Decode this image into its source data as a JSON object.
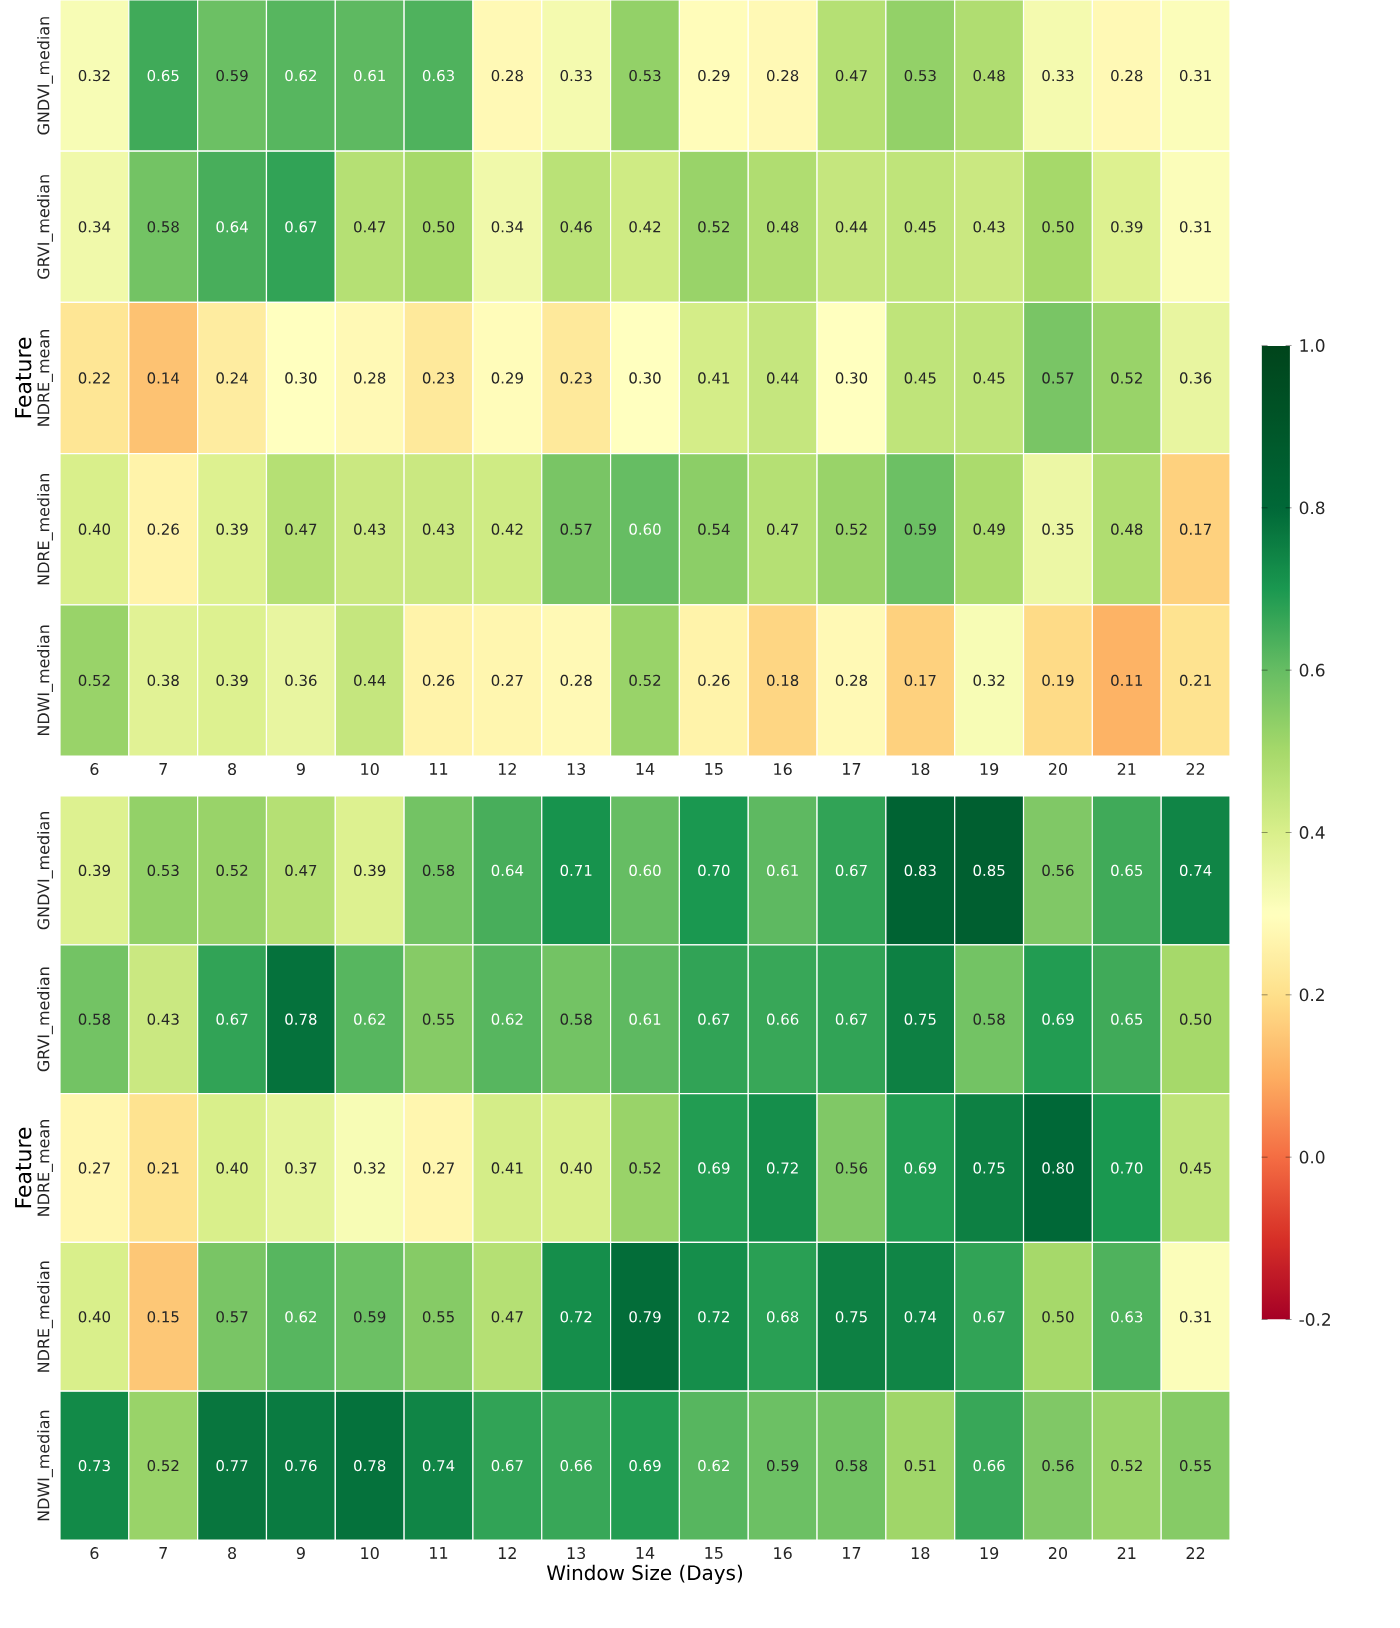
{
  "chart_data": [
    {
      "type": "heatmap",
      "ylabel": "Feature",
      "data_labels": true,
      "categories": [
        "6",
        "7",
        "8",
        "9",
        "10",
        "11",
        "12",
        "13",
        "14",
        "15",
        "16",
        "17",
        "18",
        "19",
        "20",
        "21",
        "22"
      ],
      "y_categories": [
        "GNDVI_median",
        "GRVI_median",
        "NDRE_mean",
        "NDRE_median",
        "NDWI_median"
      ],
      "cells": [
        [
          0.32,
          0.65,
          0.59,
          0.62,
          0.61,
          0.63,
          0.28,
          0.33,
          0.53,
          0.29,
          0.28,
          0.47,
          0.53,
          0.48,
          0.33,
          0.28,
          0.31
        ],
        [
          0.34,
          0.58,
          0.64,
          0.67,
          0.47,
          0.5,
          0.34,
          0.46,
          0.42,
          0.52,
          0.48,
          0.44,
          0.45,
          0.43,
          0.5,
          0.39,
          0.31
        ],
        [
          0.22,
          0.14,
          0.24,
          0.3,
          0.28,
          0.23,
          0.29,
          0.23,
          0.3,
          0.41,
          0.44,
          0.3,
          0.45,
          0.45,
          0.57,
          0.52,
          0.36
        ],
        [
          0.4,
          0.26,
          0.39,
          0.47,
          0.43,
          0.43,
          0.42,
          0.57,
          0.6,
          0.54,
          0.47,
          0.52,
          0.59,
          0.49,
          0.35,
          0.48,
          0.17
        ],
        [
          0.52,
          0.38,
          0.39,
          0.36,
          0.44,
          0.26,
          0.27,
          0.28,
          0.52,
          0.26,
          0.18,
          0.28,
          0.17,
          0.32,
          0.19,
          0.11,
          0.21
        ]
      ],
      "cell_labels": [
        [
          "0.32",
          "0.65",
          "0.59",
          "0.62",
          "0.61",
          "0.63",
          "0.28",
          "0.33",
          "0.53",
          "0.29",
          "0.28",
          "0.47",
          "0.53",
          "0.48",
          "0.33",
          "0.28",
          "0.31"
        ],
        [
          "0.34",
          "0.58",
          "0.64",
          "0.67",
          "0.47",
          "0.50",
          "0.34",
          "0.46",
          "0.42",
          "0.52",
          "0.48",
          "0.44",
          "0.45",
          "0.43",
          "0.50",
          "0.39",
          "0.31"
        ],
        [
          "0.22",
          "0.14",
          "0.24",
          "0.30",
          "0.28",
          "0.23",
          "0.29",
          "0.23",
          "0.30",
          "0.41",
          "0.44",
          "0.30",
          "0.45",
          "0.45",
          "0.57",
          "0.52",
          "0.36"
        ],
        [
          "0.40",
          "0.26",
          "0.39",
          "0.47",
          "0.43",
          "0.43",
          "0.42",
          "0.57",
          "0.60",
          "0.54",
          "0.47",
          "0.52",
          "0.59",
          "0.49",
          "0.35",
          "0.48",
          "0.17"
        ],
        [
          "0.52",
          "0.38",
          "0.39",
          "0.36",
          "0.44",
          "0.26",
          "0.27",
          "0.28",
          "0.52",
          "0.26",
          "0.18",
          "0.28",
          "0.17",
          "0.32",
          "0.19",
          "0.11",
          "0.21"
        ]
      ],
      "clim": [
        -0.2,
        1.0
      ],
      "cticks": [
        {
          "value": -0.2,
          "label": "-0.2"
        },
        {
          "value": 0.0,
          "label": "0.0"
        },
        {
          "value": 0.2,
          "label": "0.2"
        },
        {
          "value": 0.4,
          "label": "0.4"
        },
        {
          "value": 0.6,
          "label": "0.6"
        },
        {
          "value": 0.8,
          "label": "0.8"
        },
        {
          "value": 1.0,
          "label": "1.0"
        }
      ]
    },
    {
      "type": "heatmap",
      "ylabel": "Feature",
      "xlabel": "Window Size (Days)",
      "data_labels": true,
      "categories": [
        "6",
        "7",
        "8",
        "9",
        "10",
        "11",
        "12",
        "13",
        "14",
        "15",
        "16",
        "17",
        "18",
        "19",
        "20",
        "21",
        "22"
      ],
      "y_categories": [
        "GNDVI_median",
        "GRVI_median",
        "NDRE_mean",
        "NDRE_median",
        "NDWI_median"
      ],
      "cells": [
        [
          0.39,
          0.53,
          0.52,
          0.47,
          0.39,
          0.58,
          0.64,
          0.71,
          0.6,
          0.7,
          0.61,
          0.67,
          0.83,
          0.85,
          0.56,
          0.65,
          0.74
        ],
        [
          0.58,
          0.43,
          0.67,
          0.78,
          0.62,
          0.55,
          0.62,
          0.58,
          0.61,
          0.67,
          0.66,
          0.67,
          0.75,
          0.58,
          0.69,
          0.65,
          0.5
        ],
        [
          0.27,
          0.21,
          0.4,
          0.37,
          0.32,
          0.27,
          0.41,
          0.4,
          0.52,
          0.69,
          0.72,
          0.56,
          0.69,
          0.75,
          0.8,
          0.7,
          0.45
        ],
        [
          0.4,
          0.15,
          0.57,
          0.62,
          0.59,
          0.55,
          0.47,
          0.72,
          0.79,
          0.72,
          0.68,
          0.75,
          0.74,
          0.67,
          0.5,
          0.63,
          0.31
        ],
        [
          0.73,
          0.52,
          0.77,
          0.76,
          0.78,
          0.74,
          0.67,
          0.66,
          0.69,
          0.62,
          0.59,
          0.58,
          0.51,
          0.66,
          0.56,
          0.52,
          0.55
        ]
      ],
      "cell_labels": [
        [
          "0.39",
          "0.53",
          "0.52",
          "0.47",
          "0.39",
          "0.58",
          "0.64",
          "0.71",
          "0.60",
          "0.70",
          "0.61",
          "0.67",
          "0.83",
          "0.85",
          "0.56",
          "0.65",
          "0.74"
        ],
        [
          "0.58",
          "0.43",
          "0.67",
          "0.78",
          "0.62",
          "0.55",
          "0.62",
          "0.58",
          "0.61",
          "0.67",
          "0.66",
          "0.67",
          "0.75",
          "0.58",
          "0.69",
          "0.65",
          "0.50"
        ],
        [
          "0.27",
          "0.21",
          "0.40",
          "0.37",
          "0.32",
          "0.27",
          "0.41",
          "0.40",
          "0.52",
          "0.69",
          "0.72",
          "0.56",
          "0.69",
          "0.75",
          "0.80",
          "0.70",
          "0.45"
        ],
        [
          "0.40",
          "0.15",
          "0.57",
          "0.62",
          "0.59",
          "0.55",
          "0.47",
          "0.72",
          "0.79",
          "0.72",
          "0.68",
          "0.75",
          "0.74",
          "0.67",
          "0.50",
          "0.63",
          "0.31"
        ],
        [
          "0.73",
          "0.52",
          "0.77",
          "0.76",
          "0.78",
          "0.74",
          "0.67",
          "0.66",
          "0.69",
          "0.62",
          "0.59",
          "0.58",
          "0.51",
          "0.66",
          "0.56",
          "0.52",
          "0.55"
        ]
      ]
    }
  ]
}
